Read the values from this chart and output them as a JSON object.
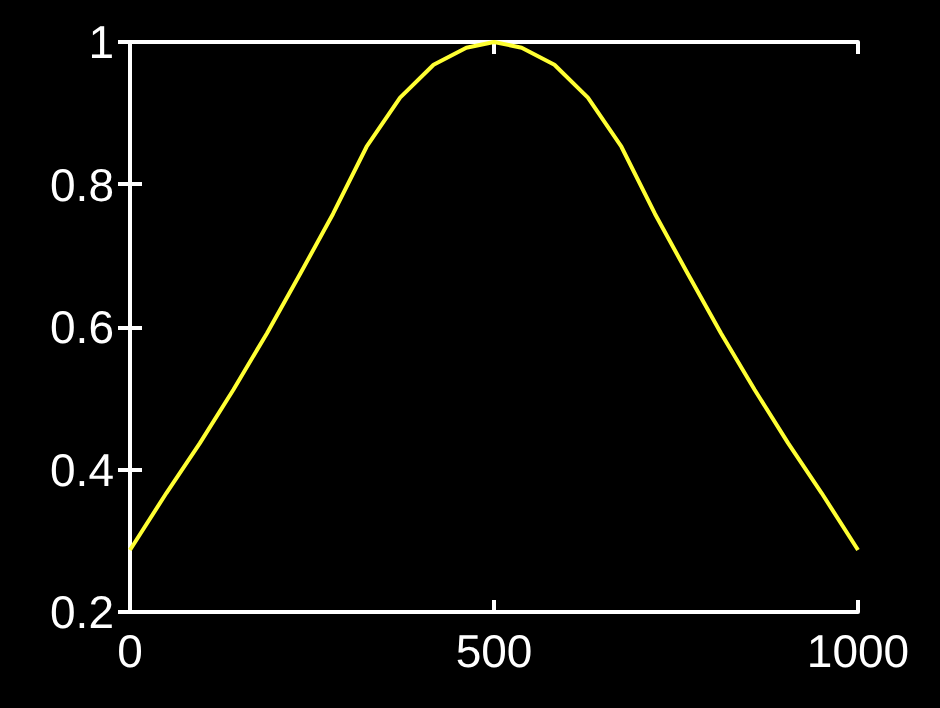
{
  "chart_data": {
    "type": "line",
    "x": [
      0,
      50,
      96,
      142,
      188,
      234,
      279,
      325,
      371,
      417,
      462,
      500,
      538,
      583,
      629,
      675,
      721,
      766,
      812,
      858,
      904,
      950,
      1000
    ],
    "series": [
      {
        "color": "#ffff33",
        "values": [
          0.287,
          0.367,
          0.437,
          0.512,
          0.591,
          0.675,
          0.759,
          0.853,
          0.922,
          0.968,
          0.992,
          1,
          0.992,
          0.968,
          0.922,
          0.853,
          0.759,
          0.675,
          0.591,
          0.512,
          0.437,
          0.367,
          0.287
        ]
      }
    ],
    "xlim": [
      0,
      1000
    ],
    "xticks": [
      0,
      500,
      1000
    ],
    "ylim": [
      0.2,
      1
    ],
    "yticks": [
      0.2,
      0.4,
      0.6,
      0.8,
      1
    ],
    "grid": false,
    "marker": "none",
    "line_style": "solid"
  }
}
